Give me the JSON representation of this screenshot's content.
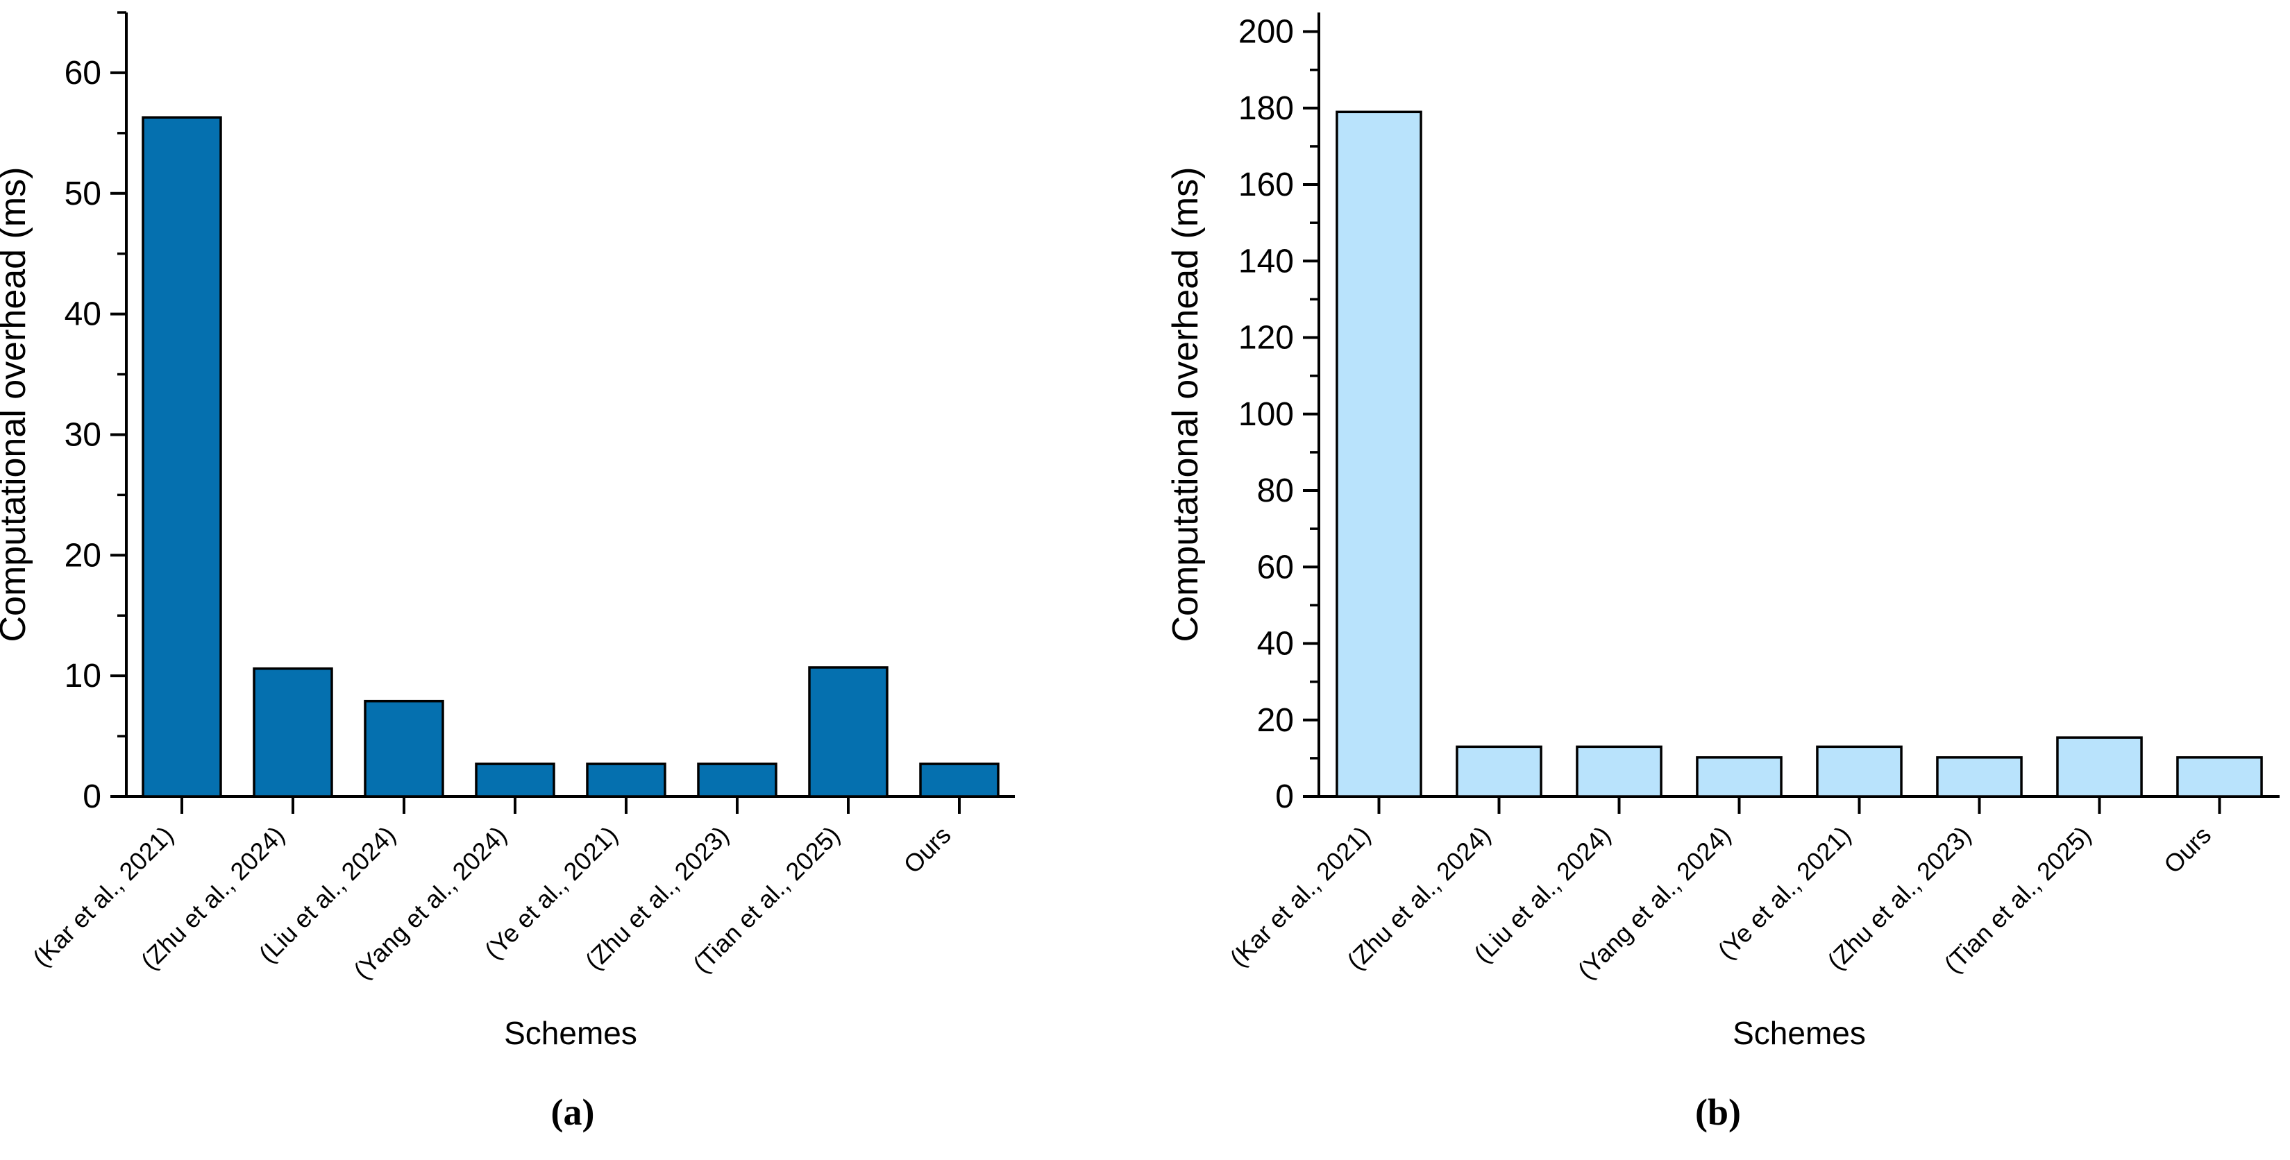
{
  "figure": {
    "background": "#ffffff",
    "captions": {
      "a": "(a)",
      "b": "(b)"
    }
  },
  "chart_data": [
    {
      "id": "a",
      "type": "bar",
      "title": "",
      "xlabel": "Schemes",
      "ylabel": "Computational overhead (ms)",
      "categories": [
        "(Kar et al., 2021)",
        "(Zhu et al., 2024)",
        "(Liu et al., 2024)",
        "(Yang et al., 2024)",
        "(Ye et al., 2021)",
        "(Zhu et al., 2023)",
        "(Tian et al., 2025)",
        "Ours"
      ],
      "values": [
        56.3,
        10.6,
        7.9,
        2.7,
        2.7,
        2.7,
        10.7,
        2.7
      ],
      "ylim": [
        0,
        65
      ],
      "ytick_major": 10,
      "ytick_minor": 5,
      "ytick_labels": [
        "0",
        "10",
        "20",
        "30",
        "40",
        "50",
        "60"
      ],
      "grid": false,
      "legend": null,
      "bar_fill": "#0570af",
      "bar_stroke": "#000000",
      "axis_color": "#000000"
    },
    {
      "id": "b",
      "type": "bar",
      "title": "",
      "xlabel": "Schemes",
      "ylabel": "Computational overhead (ms)",
      "categories": [
        "(Kar et al., 2021)",
        "(Zhu et al., 2024)",
        "(Liu et al., 2024)",
        "(Yang et al., 2024)",
        "(Ye et al., 2021)",
        "(Zhu et al., 2023)",
        "(Tian et al., 2025)",
        "Ours"
      ],
      "values": [
        179,
        13,
        13,
        10.2,
        13,
        10.2,
        15.4,
        10.2
      ],
      "ylim": [
        0,
        205
      ],
      "ytick_major": 20,
      "ytick_minor": 10,
      "ytick_labels": [
        "0",
        "20",
        "40",
        "60",
        "80",
        "100",
        "120",
        "140",
        "160",
        "180",
        "200"
      ],
      "grid": false,
      "legend": null,
      "bar_fill": "#b9e3fc",
      "bar_stroke": "#000000",
      "axis_color": "#000000"
    }
  ]
}
